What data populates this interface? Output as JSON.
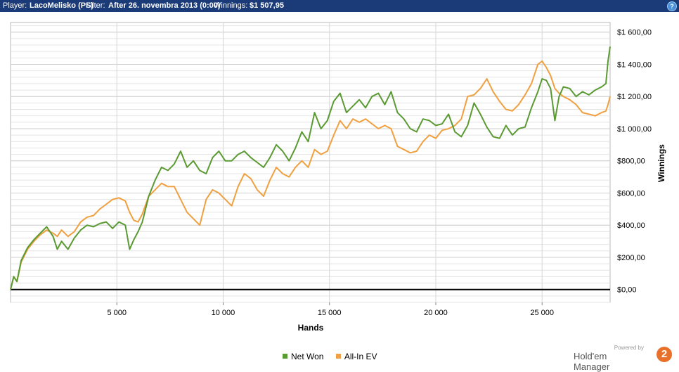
{
  "header": {
    "player_label": "Player:",
    "player_value": "LacoMelisko (PS)",
    "filter_label": "Filter:",
    "filter_value": "After 26. novembra 2013 (0:00)",
    "winnings_label": "Winnings:",
    "winnings_value": "$1 507,95",
    "help_glyph": "?",
    "help_icon": "help-icon"
  },
  "branding": {
    "powered_by": "Powered by",
    "name": "Hold'em Manager",
    "logo_text": "2"
  },
  "chart_data": {
    "type": "line",
    "xlabel": "Hands",
    "ylabel": "Winnings",
    "xlim": [
      0,
      28200
    ],
    "ylim": [
      -80,
      1660
    ],
    "x_ticks": [
      5000,
      10000,
      15000,
      20000,
      25000
    ],
    "x_tick_labels": [
      "5 000",
      "10 000",
      "15 000",
      "20 000",
      "25 000"
    ],
    "y_ticks": [
      0,
      200,
      400,
      600,
      800,
      1000,
      1200,
      1400,
      1600
    ],
    "y_tick_labels": [
      "$0,00",
      "$200,00",
      "$400,00",
      "$600,00",
      "$800,00",
      "$1 000,00",
      "$1 200,00",
      "$1 400,00",
      "$1 600,00"
    ],
    "grid": true,
    "legend_position": "bottom-center",
    "series": [
      {
        "name": "Net Won",
        "color": "#5a9a32",
        "x": [
          0,
          150,
          300,
          500,
          800,
          1100,
          1400,
          1700,
          2000,
          2200,
          2400,
          2700,
          3000,
          3300,
          3600,
          3900,
          4200,
          4500,
          4800,
          5100,
          5400,
          5600,
          5800,
          6000,
          6200,
          6500,
          6800,
          7100,
          7400,
          7700,
          8000,
          8300,
          8600,
          8900,
          9200,
          9500,
          9800,
          10100,
          10400,
          10700,
          11000,
          11300,
          11600,
          11900,
          12200,
          12500,
          12800,
          13100,
          13400,
          13700,
          14000,
          14300,
          14600,
          14900,
          15200,
          15500,
          15800,
          16100,
          16400,
          16700,
          17000,
          17300,
          17600,
          17900,
          18200,
          18500,
          18800,
          19100,
          19400,
          19700,
          20000,
          20300,
          20600,
          20900,
          21200,
          21500,
          21800,
          22100,
          22400,
          22700,
          23000,
          23300,
          23600,
          23900,
          24200,
          24500,
          24800,
          25000,
          25200,
          25400,
          25600,
          25800,
          26000,
          26300,
          26600,
          26900,
          27200,
          27500,
          27800,
          28000,
          28100,
          28200
        ],
        "y": [
          0,
          80,
          50,
          180,
          260,
          310,
          350,
          390,
          330,
          250,
          300,
          250,
          320,
          370,
          400,
          390,
          410,
          420,
          380,
          420,
          400,
          250,
          310,
          360,
          420,
          580,
          680,
          760,
          740,
          780,
          860,
          760,
          800,
          740,
          720,
          820,
          860,
          800,
          800,
          840,
          860,
          820,
          790,
          760,
          820,
          900,
          860,
          800,
          880,
          980,
          920,
          1100,
          1000,
          1050,
          1170,
          1220,
          1100,
          1140,
          1180,
          1130,
          1200,
          1220,
          1150,
          1230,
          1100,
          1060,
          1000,
          980,
          1060,
          1050,
          1020,
          1030,
          1090,
          980,
          950,
          1020,
          1160,
          1090,
          1010,
          950,
          940,
          1020,
          960,
          1000,
          1010,
          1130,
          1230,
          1310,
          1300,
          1250,
          1050,
          1200,
          1260,
          1250,
          1200,
          1230,
          1210,
          1240,
          1260,
          1280,
          1420,
          1510
        ]
      },
      {
        "name": "All-In EV",
        "color": "#f0a040",
        "x": [
          0,
          150,
          300,
          500,
          800,
          1100,
          1400,
          1700,
          2000,
          2200,
          2400,
          2700,
          3000,
          3300,
          3600,
          3900,
          4200,
          4500,
          4800,
          5100,
          5400,
          5600,
          5800,
          6000,
          6200,
          6500,
          6800,
          7100,
          7400,
          7700,
          8000,
          8300,
          8600,
          8900,
          9200,
          9500,
          9800,
          10100,
          10400,
          10700,
          11000,
          11300,
          11600,
          11900,
          12200,
          12500,
          12800,
          13100,
          13400,
          13700,
          14000,
          14300,
          14600,
          14900,
          15200,
          15500,
          15800,
          16100,
          16400,
          16700,
          17000,
          17300,
          17600,
          17900,
          18200,
          18500,
          18800,
          19100,
          19400,
          19700,
          20000,
          20300,
          20600,
          20900,
          21200,
          21500,
          21800,
          22100,
          22400,
          22700,
          23000,
          23300,
          23600,
          23900,
          24200,
          24500,
          24800,
          25000,
          25200,
          25400,
          25600,
          25800,
          26000,
          26300,
          26600,
          26900,
          27200,
          27500,
          27800,
          28000,
          28100,
          28200
        ],
        "y": [
          0,
          80,
          50,
          170,
          250,
          300,
          340,
          370,
          350,
          330,
          370,
          330,
          360,
          420,
          450,
          460,
          500,
          530,
          560,
          570,
          550,
          480,
          430,
          420,
          470,
          580,
          620,
          660,
          640,
          640,
          560,
          480,
          440,
          400,
          560,
          620,
          600,
          560,
          520,
          640,
          720,
          690,
          620,
          580,
          680,
          760,
          720,
          700,
          760,
          800,
          760,
          870,
          840,
          860,
          960,
          1050,
          1000,
          1060,
          1040,
          1060,
          1030,
          1000,
          1020,
          1000,
          890,
          870,
          850,
          860,
          920,
          960,
          940,
          990,
          1000,
          1020,
          1060,
          1200,
          1210,
          1250,
          1310,
          1230,
          1170,
          1120,
          1110,
          1150,
          1210,
          1280,
          1400,
          1420,
          1380,
          1330,
          1250,
          1220,
          1200,
          1180,
          1150,
          1100,
          1090,
          1080,
          1100,
          1110,
          1150,
          1200
        ]
      }
    ]
  }
}
